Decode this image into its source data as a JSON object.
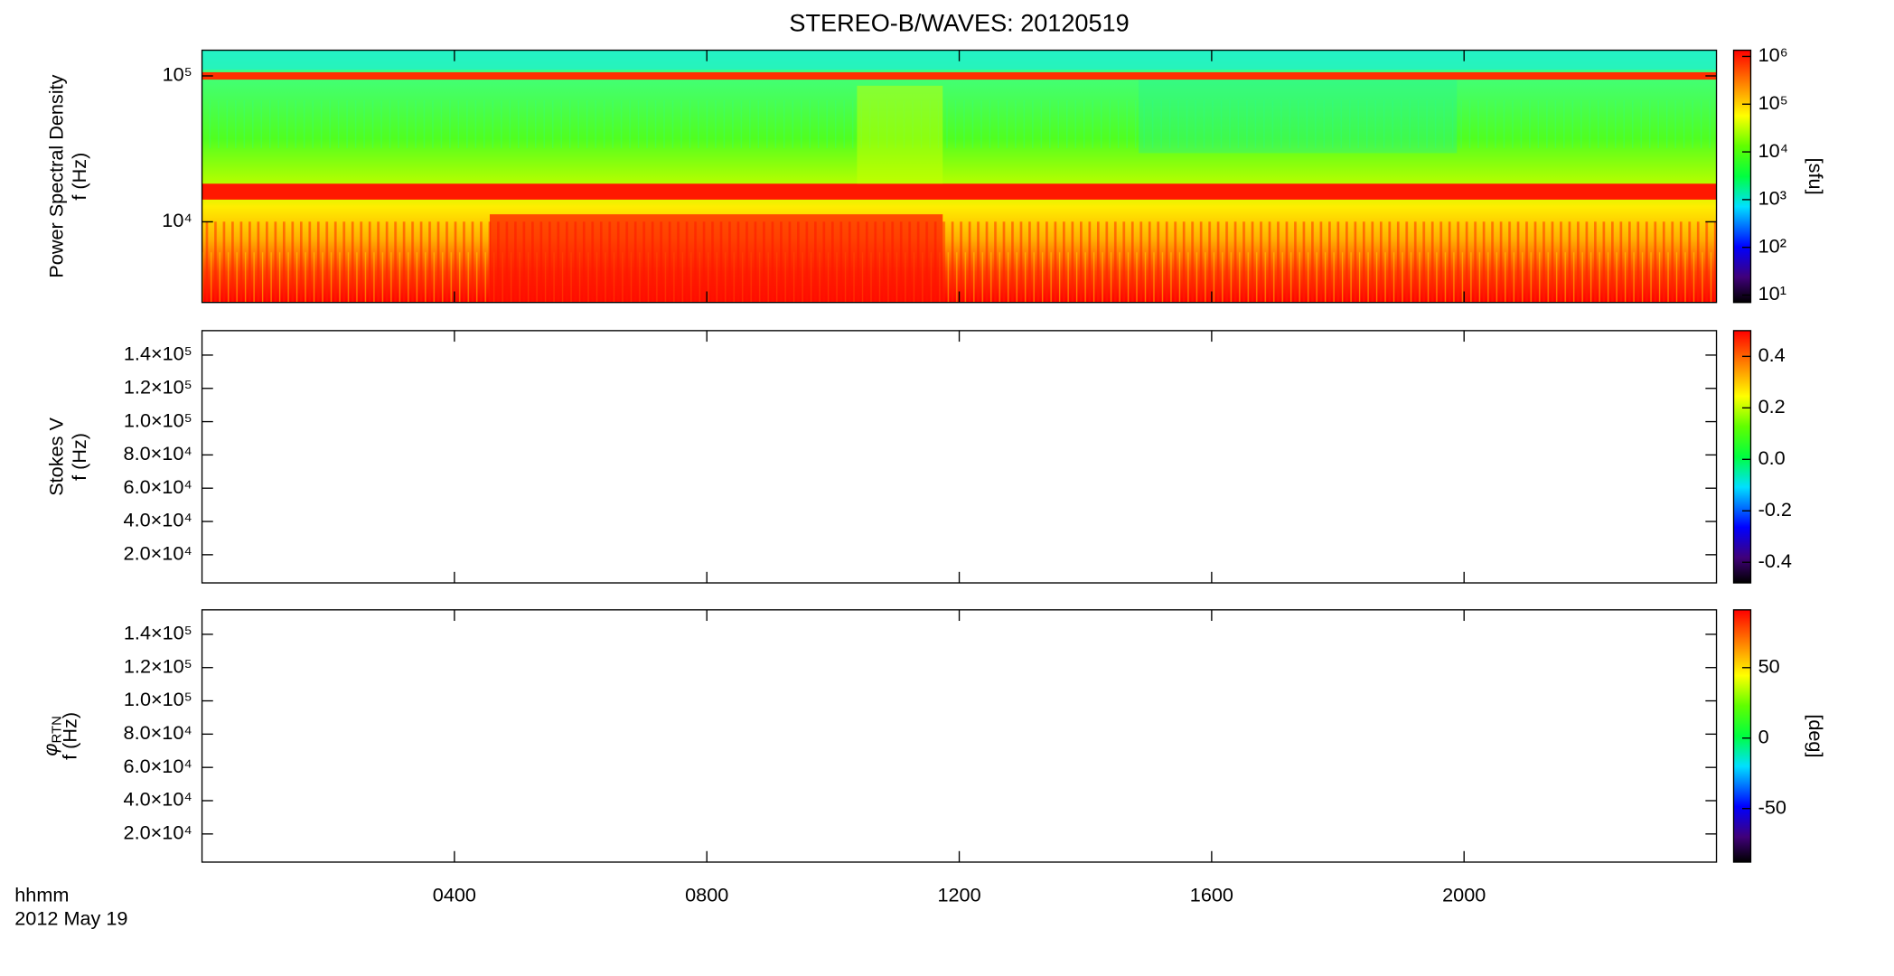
{
  "figure": {
    "title": "STEREO-B/WAVES: 20120519",
    "xlim": [
      0,
      24
    ],
    "xticks": [
      {
        "value": 4,
        "label": "0400"
      },
      {
        "value": 8,
        "label": "0800"
      },
      {
        "value": 12,
        "label": "1200"
      },
      {
        "value": 16,
        "label": "1600"
      },
      {
        "value": 20,
        "label": "2000"
      }
    ],
    "xlabel": "hhmm",
    "date": "2012 May 19"
  },
  "chart_data": [
    {
      "type": "heatmap",
      "ylabel": "Power Spectral Density",
      "ylabel2": "f (Hz)",
      "log_y": true,
      "ylim": [
        2800,
        150000
      ],
      "yticks": [
        {
          "value": 10000,
          "label": "10⁴"
        },
        {
          "value": 100000,
          "label": "10⁵"
        }
      ],
      "colorbar": {
        "log": true,
        "clim": [
          7,
          1350000
        ],
        "label": "[sfu]",
        "ticks": [
          {
            "value": 10,
            "label": "10¹"
          },
          {
            "value": 100,
            "label": "10²"
          },
          {
            "value": 1000,
            "label": "10³"
          },
          {
            "value": 10000,
            "label": "10⁴"
          },
          {
            "value": 100000,
            "label": "10⁵"
          },
          {
            "value": 1000000,
            "label": "10⁶"
          }
        ]
      }
    },
    {
      "type": "heatmap",
      "ylabel": "Stokes V",
      "ylabel2": "f (Hz)",
      "log_y": false,
      "ylim": [
        3070,
        154700
      ],
      "yticks": [
        {
          "value": 20000,
          "label": "2.0×10⁴"
        },
        {
          "value": 40000,
          "label": "4.0×10⁴"
        },
        {
          "value": 60000,
          "label": "6.0×10⁴"
        },
        {
          "value": 80000,
          "label": "8.0×10⁴"
        },
        {
          "value": 100000,
          "label": "1.0×10⁵"
        },
        {
          "value": 120000,
          "label": "1.2×10⁵"
        },
        {
          "value": 140000,
          "label": "1.4×10⁵"
        }
      ],
      "colorbar": {
        "log": false,
        "clim": [
          -0.48,
          0.5
        ],
        "ticks": [
          -0.4,
          -0.2,
          {
            "value": 0,
            "label": "0.0"
          },
          0.2,
          0.4
        ]
      }
    },
    {
      "type": "heatmap",
      "ylabel_symbol": "φ",
      "ylabel_subscript": "RTN",
      "ylabel2": "f (Hz)",
      "log_y": false,
      "ylim": [
        3070,
        154700
      ],
      "yticks": [
        {
          "value": 20000,
          "label": "2.0×10⁴"
        },
        {
          "value": 40000,
          "label": "4.0×10⁴"
        },
        {
          "value": 60000,
          "label": "6.0×10⁴"
        },
        {
          "value": 80000,
          "label": "8.0×10⁴"
        },
        {
          "value": 100000,
          "label": "1.0×10⁵"
        },
        {
          "value": 120000,
          "label": "1.2×10⁵"
        },
        {
          "value": 140000,
          "label": "1.4×10⁵"
        }
      ],
      "colorbar": {
        "log": false,
        "clim": [
          -88,
          91
        ],
        "label": "[deg]",
        "ticks": [
          -50,
          0,
          50
        ]
      }
    }
  ]
}
